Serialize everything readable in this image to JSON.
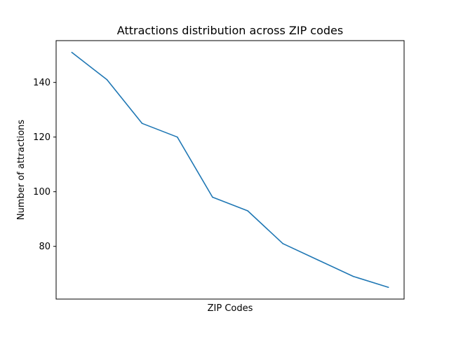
{
  "chart_data": {
    "type": "line",
    "title": "Attractions distribution across ZIP codes",
    "xlabel": "ZIP Codes",
    "ylabel": "Number of attractions",
    "x_tick_labels_shown": false,
    "grid": false,
    "legend": "none",
    "ylim": [
      60.7,
      155.3
    ],
    "yticks": [
      80,
      100,
      120,
      140
    ],
    "series": [
      {
        "color": "#1f77b4",
        "values": [
          151,
          141,
          125,
          120,
          98,
          93,
          81,
          75,
          69,
          65
        ]
      }
    ]
  }
}
